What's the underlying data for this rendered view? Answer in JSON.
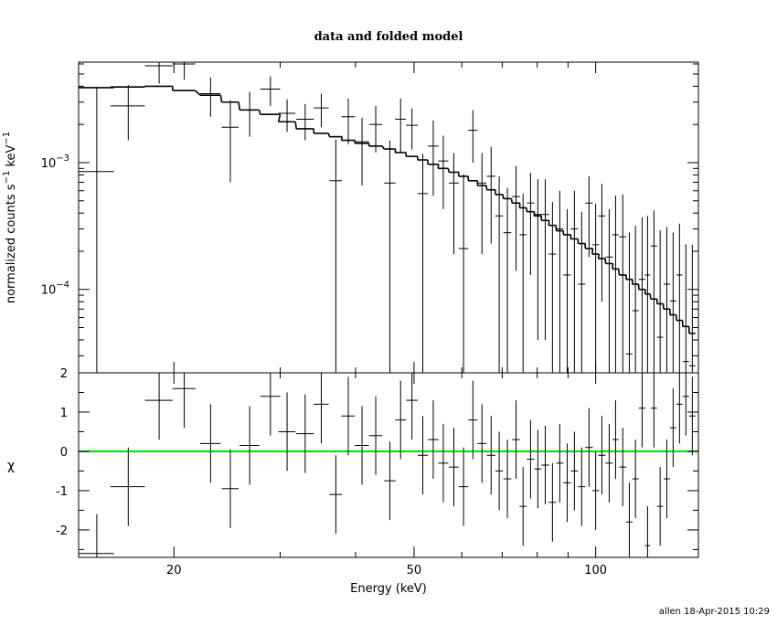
{
  "chart_data": [
    {
      "type": "errorbar-log",
      "title": "data and folded model",
      "ylabel": [
        "normalized counts s",
        "−1",
        "  keV",
        "−1"
      ],
      "log_x": true,
      "log_y": true,
      "xlim": [
        13.9,
        148
      ],
      "ylim": [
        2.2e-05,
        0.0062
      ],
      "xticks": [
        20,
        50,
        100
      ],
      "xminor": [
        30,
        40,
        60,
        70,
        80,
        90
      ],
      "yticks": [
        {
          "value": 0.001,
          "base": "10",
          "exponent": "−3"
        },
        {
          "value": 0.0001,
          "base": "10",
          "exponent": "−4"
        }
      ],
      "yminor": [
        3e-05,
        4e-05,
        5e-05,
        6e-05,
        7e-05,
        8e-05,
        9e-05,
        0.0002,
        0.0003,
        0.0004,
        0.0005,
        0.0006,
        0.0007,
        0.0008,
        0.0009,
        0.002,
        0.003,
        0.004,
        0.005,
        0.006
      ],
      "x": [
        14.9,
        16.8,
        18.9,
        20.8,
        23.0,
        24.8,
        26.7,
        28.9,
        30.8,
        33.0,
        35.1,
        37.1,
        38.9,
        41.0,
        43.2,
        45.6,
        47.5,
        49.6,
        51.7,
        53.8,
        55.9,
        58.2,
        60.4,
        62.6,
        64.8,
        67.1,
        69.2,
        71.4,
        73.8,
        75.8,
        78.0,
        80.2,
        82.5,
        84.8,
        87.2,
        89.7,
        92.2,
        94.8,
        97.5,
        100.0,
        102.4,
        105.3,
        107.9,
        110.9,
        113.7,
        116.4,
        119.4,
        121.9,
        124.9,
        127.9,
        131.2,
        134.4,
        137.7,
        141.1,
        144.6
      ],
      "xerr": [
        1.0,
        1.1,
        1.0,
        0.9,
        0.9,
        0.8,
        1.0,
        1.1,
        1.0,
        1.1,
        1.0,
        0.9,
        1.0,
        1.1,
        1.1,
        1.0,
        1.0,
        1.1,
        1.0,
        1.1,
        1.1,
        1.1,
        1.1,
        1.1,
        1.1,
        1.1,
        1.0,
        1.1,
        1.1,
        1.0,
        1.1,
        1.1,
        1.2,
        1.2,
        1.2,
        1.3,
        1.3,
        1.3,
        1.4,
        1.3,
        1.4,
        1.5,
        1.3,
        1.5,
        1.4,
        1.4,
        1.5,
        1.2,
        1.5,
        1.5,
        1.6,
        1.6,
        1.6,
        1.7,
        1.7
      ],
      "series": [
        {
          "name": "data",
          "color": "#000000",
          "values": [
            0.00085,
            0.0028,
            0.0058,
            0.006,
            0.0035,
            0.0019,
            0.0026,
            0.0038,
            0.00245,
            0.0022,
            0.0027,
            0.00072,
            0.0023,
            0.00146,
            0.002,
            0.00069,
            0.0022,
            0.00197,
            0.00057,
            0.00135,
            0.00103,
            0.00069,
            0.00021,
            0.0018,
            0.00069,
            0.00078,
            0.00038,
            0.00028,
            0.00054,
            0.00027,
            0.00048,
            0.00039,
            0.00039,
            0.00019,
            0.0003,
            0.00013,
            0.0003,
            0.00011,
            0.00048,
            0.000225,
            0.00038,
            0.00018,
            0.00027,
            0.00026,
            3.1e-05,
            6.8e-05,
            0.00012,
            0.00013,
            0.00022,
            4.2e-05,
            0.00011,
            8.1e-05,
            0.00013,
            2.7e-05,
            2.5e-05
          ],
          "errors": [
            0.0031,
            0.0013,
            0.0016,
            0.0015,
            0.0012,
            0.0012,
            0.001,
            0.001,
            0.0007,
            0.0007,
            0.0008,
            0.0008,
            0.0009,
            0.0008,
            0.0008,
            0.0008,
            0.001,
            0.0007,
            0.0006,
            0.0008,
            0.0006,
            0.0005,
            0.0006,
            0.0008,
            0.0005,
            0.00055,
            0.0004,
            0.00035,
            0.0004,
            0.0003,
            0.00035,
            0.00035,
            0.00035,
            0.0003,
            0.0003,
            0.0003,
            0.0003,
            0.0003,
            0.0003,
            0.00025,
            0.0003,
            0.00025,
            0.00028,
            0.0003,
            0.00025,
            0.00025,
            0.00025,
            0.00025,
            0.0002,
            0.00025,
            0.0002,
            0.0002,
            0.0002,
            0.0002,
            0.0002
          ]
        },
        {
          "name": "model",
          "color": "#000000",
          "step": true,
          "values": [
            0.0039,
            0.00395,
            0.004,
            0.0037,
            0.0034,
            0.003,
            0.0026,
            0.0024,
            0.0021,
            0.00185,
            0.0017,
            0.0016,
            0.0015,
            0.00142,
            0.00135,
            0.00128,
            0.0012,
            0.00112,
            0.00105,
            0.00097,
            0.0009,
            0.00084,
            0.00078,
            0.00072,
            0.00066,
            0.00061,
            0.00056,
            0.00052,
            0.00048,
            0.00044,
            0.00041,
            0.00038,
            0.00035,
            0.00032,
            0.00029,
            0.00027,
            0.00025,
            0.00023,
            0.00021,
            0.00019,
            0.000175,
            0.00016,
            0.000145,
            0.00013,
            0.00012,
            0.00011,
            0.0001,
            9.2e-05,
            8.4e-05,
            7.7e-05,
            7e-05,
            6.3e-05,
            5.7e-05,
            5.1e-05,
            4.5e-05
          ]
        }
      ]
    },
    {
      "type": "errorbar-residual",
      "ylabel": "χ",
      "xlabel": "Energy (keV)",
      "log_x": true,
      "xlim": [
        13.9,
        148
      ],
      "ylim": [
        -2.7,
        2
      ],
      "xticks": [
        20,
        50,
        100
      ],
      "xminor": [
        30,
        40,
        60,
        70,
        80,
        90
      ],
      "yticks": [
        -2,
        -1,
        0,
        1,
        2
      ],
      "yminor": [
        -2.5,
        -1.5,
        -0.5,
        0.5,
        1.5
      ],
      "zero_line": {
        "value": 0,
        "color": "#00e000"
      },
      "x": [
        14.9,
        16.8,
        18.9,
        20.8,
        23.0,
        24.8,
        26.7,
        28.9,
        30.8,
        33.0,
        35.1,
        37.1,
        38.9,
        41.0,
        43.2,
        45.6,
        47.5,
        49.6,
        51.7,
        53.8,
        55.9,
        58.2,
        60.4,
        62.6,
        64.8,
        67.1,
        69.2,
        71.4,
        73.8,
        75.8,
        78.0,
        80.2,
        82.5,
        84.8,
        87.2,
        89.7,
        92.2,
        94.8,
        97.5,
        100.0,
        102.4,
        105.3,
        107.9,
        110.9,
        113.7,
        116.4,
        119.4,
        121.9,
        124.9,
        127.9,
        131.2,
        134.4,
        137.7,
        141.1,
        144.6
      ],
      "xerr": [
        1.0,
        1.1,
        1.0,
        0.9,
        0.9,
        0.8,
        1.0,
        1.1,
        1.0,
        1.1,
        1.0,
        0.9,
        1.0,
        1.1,
        1.1,
        1.0,
        1.0,
        1.1,
        1.0,
        1.1,
        1.1,
        1.1,
        1.1,
        1.1,
        1.1,
        1.1,
        1.0,
        1.1,
        1.1,
        1.0,
        1.1,
        1.1,
        1.2,
        1.2,
        1.2,
        1.3,
        1.3,
        1.3,
        1.4,
        1.3,
        1.4,
        1.5,
        1.3,
        1.5,
        1.4,
        1.4,
        1.5,
        1.2,
        1.5,
        1.5,
        1.6,
        1.6,
        1.6,
        1.7,
        1.7
      ],
      "series": [
        {
          "name": "residuals",
          "color": "#000000",
          "values": [
            -2.6,
            -0.9,
            1.3,
            1.6,
            0.2,
            -0.95,
            0.15,
            1.4,
            0.5,
            0.45,
            1.2,
            -1.1,
            0.9,
            0.15,
            0.4,
            -0.75,
            0.8,
            1.3,
            -0.1,
            0.3,
            -0.3,
            -0.4,
            -0.9,
            0.8,
            0.2,
            -0.1,
            -0.5,
            -0.7,
            0.3,
            -1.4,
            -0.2,
            -0.45,
            -0.35,
            -1.3,
            -0.3,
            -0.8,
            -0.5,
            -0.9,
            0.1,
            -1.0,
            -0.1,
            -0.3,
            0.3,
            -0.4,
            -1.8,
            -0.7,
            1.1,
            -2.4,
            1.1,
            -1.4,
            -0.7,
            0.6,
            1.2,
            1.4,
            0.9
          ],
          "errors": [
            1,
            1,
            1,
            1,
            1,
            1,
            1,
            1,
            1,
            1,
            1,
            1,
            1,
            1,
            1,
            1,
            1,
            1,
            1,
            1,
            1,
            1,
            1,
            1,
            1,
            1,
            1,
            1,
            1,
            1,
            1,
            1,
            1,
            1,
            1,
            1,
            1,
            1,
            1,
            1,
            1,
            1,
            1,
            1,
            1,
            1,
            1,
            1,
            1,
            1,
            1,
            1,
            1,
            1,
            1
          ]
        }
      ]
    }
  ],
  "footer": "allen 18-Apr-2015 10:29"
}
